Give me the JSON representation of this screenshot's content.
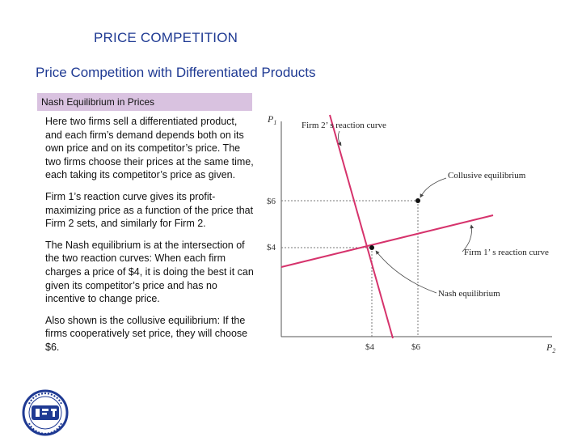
{
  "header": {
    "title": "PRICE COMPETITION",
    "subtitle": "Price Competition with Differentiated Products"
  },
  "box": {
    "heading": "Nash Equilibrium in Prices",
    "paragraphs": [
      "Here two firms sell a differentiated product, and each firm’s demand depends both on its own price and on its competitor’s price. The two firms choose their prices at the same time, each taking its competitor’s price as given.",
      "Firm 1’s reaction curve gives its profit-maximizing price as a function of the price that Firm 2 sets, and similarly for Firm 2.",
      "The Nash equilibrium is at the intersection of the two reaction curves: When each firm charges a price of $4, it is doing the best it can given its competitor’s price and has no incentive to change price.",
      "Also shown is the collusive equilibrium: If the firms cooperatively set price, they will choose $6."
    ]
  },
  "diagram": {
    "y_axis_label": "P",
    "y_axis_sub": "1",
    "x_axis_label": "P",
    "x_axis_sub": "2",
    "y_ticks": [
      "$6",
      "$4"
    ],
    "x_ticks": [
      "$4",
      "$6"
    ],
    "labels": {
      "firm2_curve": "Firm 2’ s reaction curve",
      "collusive": "Collusive equilibrium",
      "firm1_curve": "Firm 1’ s reaction curve",
      "nash": "Nash equilibrium"
    },
    "curve_color": "#d6336c"
  }
}
